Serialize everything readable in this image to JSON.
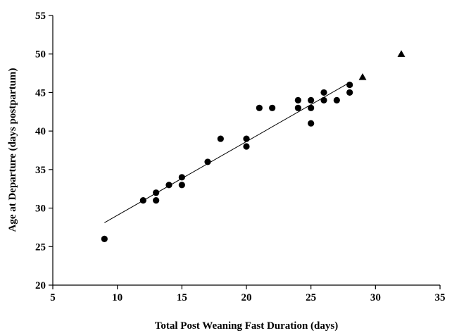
{
  "chart_data": {
    "type": "scatter",
    "title": "",
    "xlabel": "Total Post Weaning Fast Duration (days)",
    "ylabel": "Age at Departure (days postpartum)",
    "xlim": [
      5,
      35
    ],
    "ylim": [
      20,
      55
    ],
    "xticks": [
      5,
      10,
      15,
      20,
      25,
      30,
      35
    ],
    "yticks": [
      20,
      25,
      30,
      35,
      40,
      45,
      50,
      55
    ],
    "grid": false,
    "colors": {
      "marker": "#000000",
      "axis": "#000000",
      "line": "#000000"
    },
    "series": [
      {
        "marker": "circle",
        "points": [
          [
            9,
            26
          ],
          [
            12,
            31
          ],
          [
            13,
            32
          ],
          [
            13,
            31
          ],
          [
            14,
            33
          ],
          [
            15,
            34
          ],
          [
            15,
            33
          ],
          [
            17,
            36
          ],
          [
            18,
            39
          ],
          [
            20,
            39
          ],
          [
            20,
            38
          ],
          [
            21,
            43
          ],
          [
            22,
            43
          ],
          [
            24,
            44
          ],
          [
            24,
            43
          ],
          [
            25,
            44
          ],
          [
            25,
            43
          ],
          [
            25,
            41
          ],
          [
            26,
            45
          ],
          [
            26,
            44
          ],
          [
            27,
            44
          ],
          [
            28,
            46
          ],
          [
            28,
            45
          ]
        ]
      },
      {
        "marker": "triangle",
        "points": [
          [
            29,
            47
          ],
          [
            32,
            50
          ]
        ]
      }
    ],
    "trendline": {
      "type": "linear",
      "x": [
        9,
        28
      ],
      "y": [
        28.1,
        46.3
      ]
    }
  }
}
